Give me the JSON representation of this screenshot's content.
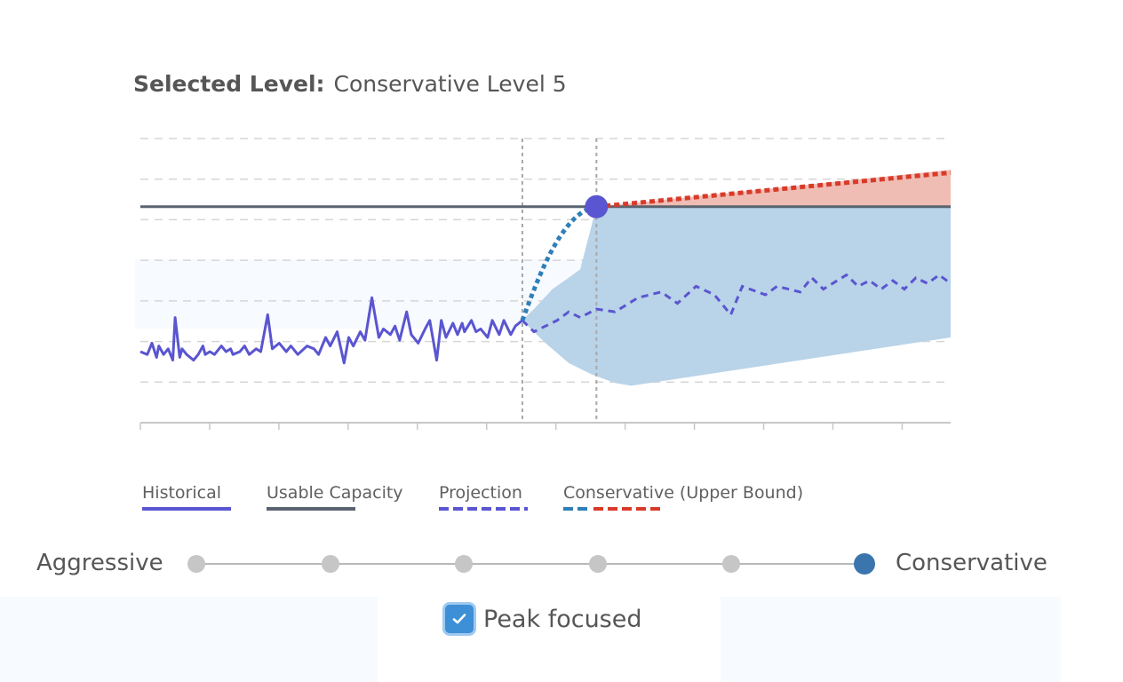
{
  "header": {
    "selected_label": "Selected Level:",
    "selected_value": "Conservative Level 5"
  },
  "chart_data": {
    "type": "line",
    "title": "Selected Level: Conservative Level 5",
    "xlabel": "",
    "ylabel": "",
    "x_range": [
      0,
      350
    ],
    "ylim": [
      0,
      100
    ],
    "grid": true,
    "x_ticks": 12,
    "now_x": 165,
    "selected_x": 197,
    "usable_capacity": 76,
    "historical": {
      "x": [
        0,
        3,
        5,
        7,
        8,
        10,
        12,
        14,
        15,
        17,
        18,
        20,
        23,
        25,
        27,
        28,
        30,
        32,
        35,
        37,
        39,
        40,
        43,
        45,
        47,
        50,
        52,
        55,
        57,
        60,
        63,
        65,
        68,
        72,
        75,
        77,
        80,
        82,
        85,
        88,
        90,
        92,
        95,
        97,
        100,
        103,
        105,
        108,
        110,
        112,
        115,
        117,
        120,
        123,
        125,
        128,
        130,
        132,
        135,
        137,
        139,
        140,
        143,
        145,
        147,
        150,
        152,
        155,
        157,
        160,
        162,
        165
      ],
      "y": [
        25,
        24,
        28,
        23,
        27,
        24,
        26,
        22,
        37,
        23,
        26,
        24,
        22,
        24,
        27,
        24,
        25,
        24,
        27,
        25,
        26,
        24,
        25,
        27,
        24,
        26,
        25,
        38,
        26,
        28,
        25,
        27,
        24,
        27,
        26,
        24,
        30,
        27,
        32,
        21,
        30,
        27,
        32,
        29,
        44,
        30,
        33,
        31,
        34,
        29,
        39,
        31,
        28,
        33,
        36,
        22,
        36,
        30,
        35,
        31,
        35,
        32,
        36,
        32,
        33,
        30,
        36,
        31,
        36,
        31,
        34,
        36
      ]
    },
    "projection": {
      "x": [
        165,
        170,
        175,
        180,
        185,
        190,
        197,
        205,
        215,
        225,
        232,
        240,
        248,
        255,
        260,
        270,
        275,
        285,
        290,
        295,
        305,
        310,
        315,
        320,
        325,
        330,
        335,
        340,
        345,
        350
      ],
      "y": [
        36,
        32,
        34,
        36,
        39,
        37,
        40,
        39,
        44,
        46,
        42,
        48,
        45,
        38,
        48,
        45,
        48,
        46,
        51,
        47,
        52,
        48,
        50,
        47,
        50,
        47,
        51,
        49,
        52,
        49
      ]
    },
    "conservative_upper_bound": {
      "x": [
        165,
        170,
        178,
        185,
        190,
        197
      ],
      "y": [
        36,
        40,
        47,
        51,
        54,
        76
      ]
    },
    "conservative_extension": {
      "x": [
        197,
        350
      ],
      "y": [
        76,
        88
      ]
    },
    "band": {
      "upper_x": [
        165,
        170,
        178,
        185,
        190,
        197,
        350
      ],
      "upper_y": [
        36,
        40,
        47,
        51,
        54,
        76,
        76
      ],
      "lower_x": [
        165,
        175,
        185,
        195,
        205,
        212,
        350
      ],
      "lower_y": [
        36,
        28,
        21,
        17,
        14,
        13,
        30
      ]
    },
    "over_capacity_band": {
      "x": [
        197,
        350
      ],
      "lower": [
        76,
        76
      ],
      "upper": [
        76,
        89
      ]
    },
    "selected_point": {
      "x": 197,
      "y": 76
    },
    "legend": [
      {
        "name": "Historical",
        "color": "#5a55d0",
        "style": "solid"
      },
      {
        "name": "Usable Capacity",
        "color": "#5a6370",
        "style": "solid"
      },
      {
        "name": "Projection",
        "color": "#5a55d0",
        "style": "dashed"
      },
      {
        "name": "Conservative (Upper Bound)",
        "colors": [
          "#2f7fb8",
          "#d93a2a"
        ],
        "style": "dashed"
      }
    ],
    "colors": {
      "historical": "#5a55d0",
      "capacity": "#5a6370",
      "projection": "#5a55d0",
      "band_blue": "#b9d3e8",
      "band_red": "#efbdb3",
      "upper_blue": "#2f7fb8",
      "upper_red": "#d93a2a",
      "marker": "#5a55d0",
      "grid": "#d6d6d6",
      "guide": "#a8a8a8"
    }
  },
  "slider": {
    "left_label": "Aggressive",
    "right_label": "Conservative",
    "levels": 6,
    "selected_index": 5
  },
  "checkbox": {
    "label": "Peak focused",
    "checked": true
  }
}
